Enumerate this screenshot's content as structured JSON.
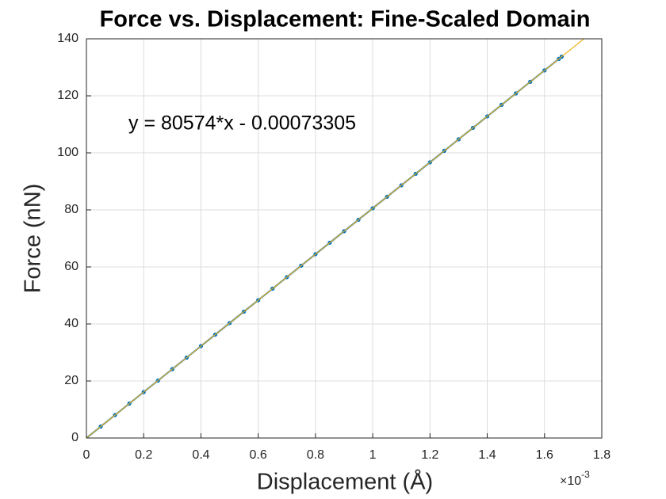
{
  "chart_data": {
    "type": "scatter",
    "title": "Force vs. Displacement: Fine-Scaled Domain",
    "xlabel": "Displacement (Å)",
    "ylabel": "Force (nN)",
    "x_exponent_label": {
      "base": "×10",
      "exponent": "-3"
    },
    "annotation": "y = 80574*x - 0.00073305",
    "xlim": [
      0,
      0.0018
    ],
    "ylim": [
      0,
      140
    ],
    "xticks": [
      0,
      {
        "value": 0.0002,
        "label": "0.2"
      },
      {
        "value": 0.0004,
        "label": "0.4"
      },
      {
        "value": 0.0006,
        "label": "0.6"
      },
      {
        "value": 0.0008,
        "label": "0.8"
      },
      {
        "value": 0.001,
        "label": "1"
      },
      {
        "value": 0.0012,
        "label": "1.2"
      },
      {
        "value": 0.0014,
        "label": "1.4"
      },
      {
        "value": 0.0016,
        "label": "1.6"
      },
      {
        "value": 0.0018,
        "label": "1.8"
      }
    ],
    "yticks": [
      0,
      20,
      40,
      60,
      80,
      100,
      120,
      140
    ],
    "grid": true,
    "series": [
      {
        "color": "#0072bd",
        "style": "markers",
        "x": [
          0,
          5e-05,
          0.0001,
          0.00015,
          0.0002,
          0.00025,
          0.0003,
          0.00035,
          0.0004,
          0.00045,
          0.0005,
          0.00055,
          0.0006,
          0.00065,
          0.0007,
          0.00075,
          0.0008,
          0.00085,
          0.0009,
          0.00095,
          0.001,
          0.00105,
          0.0011,
          0.00115,
          0.0012,
          0.00125,
          0.0013,
          0.00135,
          0.0014,
          0.00145,
          0.0015,
          0.00155,
          0.0016,
          0.00165,
          0.00166
        ],
        "values": [
          0,
          4.03,
          8.06,
          12.09,
          16.11,
          20.14,
          24.17,
          28.2,
          32.23,
          36.26,
          40.29,
          44.32,
          48.34,
          52.37,
          56.4,
          60.43,
          64.46,
          68.49,
          72.52,
          76.55,
          80.57,
          84.6,
          88.63,
          92.66,
          96.69,
          100.72,
          104.75,
          108.77,
          112.8,
          116.83,
          120.86,
          124.89,
          128.92,
          132.95,
          133.75
        ]
      },
      {
        "color": "#edb120",
        "style": "line",
        "x": [
          0,
          0.001737
        ],
        "values": [
          -0.00073,
          139.96
        ]
      }
    ]
  }
}
